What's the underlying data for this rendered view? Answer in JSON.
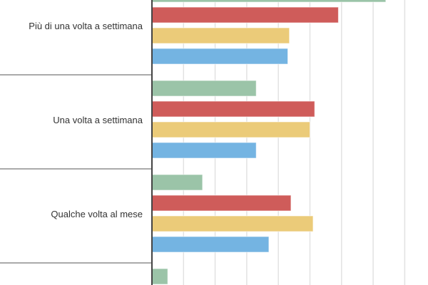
{
  "chart_data": {
    "type": "bar",
    "orientation": "horizontal",
    "categories": [
      "",
      "Più di una volta a settimana",
      "Una volta a settimana",
      "Qualche volta al mese",
      ""
    ],
    "series": [
      {
        "color": "#9bc4a8",
        "values": [
          null,
          7.4,
          3.3,
          1.6,
          0.5
        ]
      },
      {
        "color": "#cf5c5a",
        "values": [
          null,
          5.9,
          5.15,
          4.4,
          null
        ]
      },
      {
        "color": "#ebcb79",
        "values": [
          null,
          4.35,
          5.0,
          5.1,
          null
        ]
      },
      {
        "color": "#74b4e2",
        "values": [
          null,
          4.3,
          3.3,
          3.7,
          null
        ]
      }
    ],
    "xlim": [
      0,
      8.5
    ],
    "grid": true,
    "tick_labels_visible": false
  }
}
